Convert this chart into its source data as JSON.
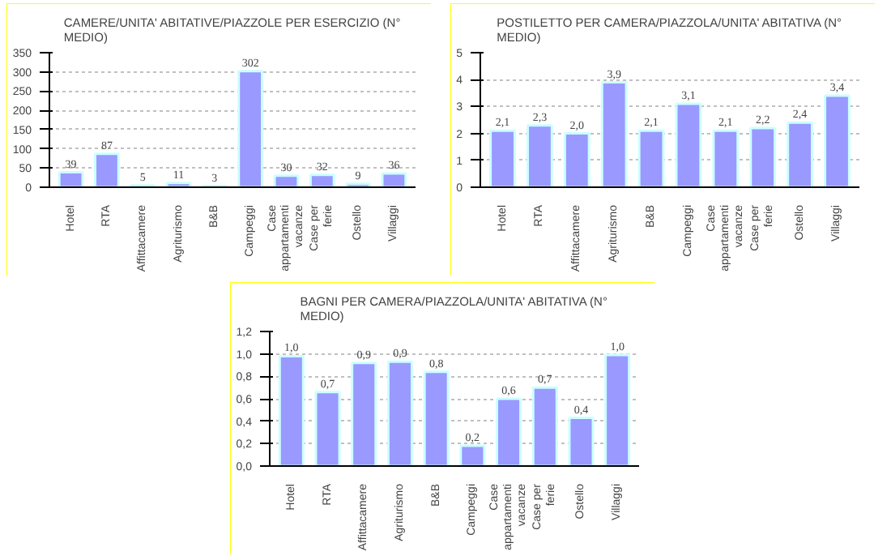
{
  "chart_data": [
    {
      "type": "bar",
      "title": "CAMERE/UNITA' ABITATIVE/PIAZZOLE PER ESERCIZIO (N° MEDIO)",
      "categories": [
        "Hotel",
        "RTA",
        "Affittacamere",
        "Agriturismo",
        "B&B",
        "Campeggi",
        "Case appartamenti vacanze",
        "Case per ferie",
        "Ostello",
        "Villaggi"
      ],
      "values": [
        39,
        87,
        5,
        11,
        3,
        302,
        30,
        32,
        9,
        36
      ],
      "data_labels": true,
      "color": "#9999ff",
      "ylim": [
        0,
        350
      ],
      "yticks": [
        0,
        50,
        100,
        150,
        200,
        250,
        300,
        350
      ],
      "grid": "y"
    },
    {
      "type": "bar",
      "title": "POSTILETTO PER CAMERA/PIAZZOLA/UNITA' ABITATIVA (N° MEDIO)",
      "categories": [
        "Hotel",
        "RTA",
        "Affittacamere",
        "Agriturismo",
        "B&B",
        "Campeggi",
        "Case appartamenti vacanze",
        "Case per ferie",
        "Ostello",
        "Villaggi"
      ],
      "values": [
        2.1,
        2.3,
        2.0,
        3.9,
        2.1,
        3.1,
        2.1,
        2.2,
        2.4,
        3.4
      ],
      "value_labels": [
        "2,1",
        "2,3",
        "2,0",
        "3,9",
        "2,1",
        "3,1",
        "2,1",
        "2,2",
        "2,4",
        "3,4"
      ],
      "color": "#9999ff",
      "ylim": [
        0,
        5
      ],
      "yticks": [
        0,
        1,
        2,
        3,
        4,
        5
      ],
      "grid": "y"
    },
    {
      "type": "bar",
      "title": "BAGNI PER CAMERA/PIAZZOLA/UNITA' ABITATIVA (N° MEDIO)",
      "categories": [
        "Hotel",
        "RTA",
        "Affittacamere",
        "Agriturismo",
        "B&B",
        "Campeggi",
        "Case appartamenti vacanze",
        "Case per ferie",
        "Ostello",
        "Villaggi"
      ],
      "values": [
        0.98,
        0.66,
        0.92,
        0.93,
        0.84,
        0.18,
        0.6,
        0.7,
        0.43,
        0.99
      ],
      "value_labels": [
        "1,0",
        "0,7",
        "0,9",
        "0,9",
        "0,8",
        "0,2",
        "0,6",
        "0,7",
        "0,4",
        "1,0"
      ],
      "color": "#9999ff",
      "ylim": [
        0,
        1.2
      ],
      "yticks": [
        {
          "value": 0,
          "label": "0,0"
        },
        {
          "value": 0.2,
          "label": "0,2"
        },
        {
          "value": 0.4,
          "label": "0,4"
        },
        {
          "value": 0.6,
          "label": "0,6"
        },
        {
          "value": 0.8,
          "label": "0,8"
        },
        {
          "value": 1.0,
          "label": "1,0"
        },
        {
          "value": 1.2,
          "label": "1,2"
        }
      ],
      "grid": "y"
    }
  ]
}
